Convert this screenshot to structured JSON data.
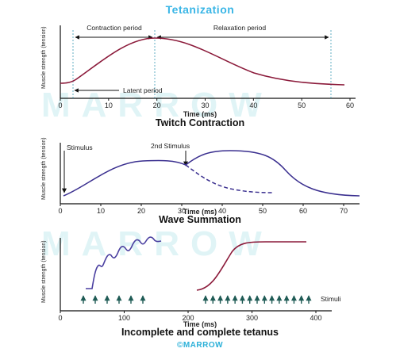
{
  "title": "Tetanization",
  "watermark": "MARROW",
  "footer": "©MARROW",
  "colors": {
    "title": "#3ab6e6",
    "twitch_curve": "#8b1a3a",
    "summation_curve": "#3a2f8f",
    "tetanus_incomplete": "#4a3fa0",
    "tetanus_complete": "#8b1a3a",
    "arrows": "#1f5b55",
    "watermark": "#cfeff3"
  },
  "twitch": {
    "ylabel": "Muscle strength (tension)",
    "xlabel": "Time (ms)",
    "caption": "Twitch Contraction",
    "contraction_label": "Contraction period",
    "relaxation_label": "Relaxation period",
    "latent_label": "Latent period",
    "xticks": [
      "0",
      "10",
      "20",
      "30",
      "40",
      "50",
      "60"
    ]
  },
  "summation": {
    "ylabel": "Muscle strength (tension)",
    "xlabel": "Time (ms)",
    "caption": "Wave Summation",
    "stimulus_label": "Stimulus",
    "stimulus2_label": "2nd Stimulus",
    "xticks": [
      "0",
      "10",
      "20",
      "30",
      "40",
      "50",
      "60",
      "70"
    ]
  },
  "tetanus": {
    "ylabel": "Muscle strength (tension)",
    "xlabel": "Time (ms)",
    "caption": "Incomplete and complete tetanus",
    "stimuli_label": "Stimuli",
    "xticks": [
      "0",
      "100",
      "200",
      "300",
      "400"
    ],
    "incomplete_stimuli_count": 6,
    "complete_stimuli_count": 15
  }
}
